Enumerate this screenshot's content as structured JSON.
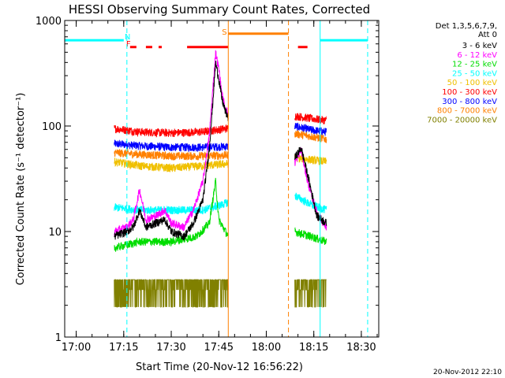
{
  "chart_data": {
    "type": "line",
    "title": "HESSI Observing Summary Count Rates, Corrected",
    "xlabel": "Start Time (20-Nov-12 16:56:22)",
    "ylabel": "Corrected Count Rate (s⁻¹ detector⁻¹)",
    "yscale": "log",
    "ylim": [
      1,
      1000
    ],
    "xlim": [
      "16:56:22",
      "18:35:30"
    ],
    "x_ticks": [
      "17:00",
      "17:15",
      "17:30",
      "17:45",
      "18:00",
      "18:15",
      "18:30"
    ],
    "y_ticks": [
      "1",
      "10",
      "100",
      "1000"
    ],
    "footer": "20-Nov-2012 22:10",
    "legend": {
      "header": [
        "Det 1,3,5,6,7,9,",
        "Att 0"
      ],
      "position": "right",
      "entries": [
        {
          "label": "3 - 6 keV",
          "color": "#000000"
        },
        {
          "label": "6 - 12 keV",
          "color": "#ff00ff"
        },
        {
          "label": "12 - 25 keV",
          "color": "#00dd00"
        },
        {
          "label": "25 - 50 keV",
          "color": "#00ffff"
        },
        {
          "label": "50 - 100 keV",
          "color": "#f0c000"
        },
        {
          "label": "100 - 300 keV",
          "color": "#ff0000"
        },
        {
          "label": "300 - 800 keV",
          "color": "#0000ff"
        },
        {
          "label": "800 - 7000 keV",
          "color": "#ff8000"
        },
        {
          "label": "7000 - 20000 keV",
          "color": "#808000"
        }
      ]
    },
    "flags": [
      {
        "letter": "N",
        "color": "#00ffff",
        "time": "17:16"
      },
      {
        "letter": "F",
        "color": "#ff0000",
        "time": "17:16"
      },
      {
        "letter": "S",
        "color": "#ff8000",
        "time": "17:46"
      }
    ],
    "flag_bars": [
      {
        "name": "night",
        "color": "#00ffff",
        "segments": [
          [
            "16:56:22",
            "17:15"
          ],
          [
            "18:17",
            "18:32"
          ]
        ],
        "level": 650
      },
      {
        "name": "saa",
        "color": "#ff8000",
        "segments": [
          [
            "17:48",
            "18:07"
          ]
        ],
        "level": 750
      },
      {
        "name": "flare",
        "color": "#ff0000",
        "segments": [
          [
            "17:17",
            "17:19"
          ],
          [
            "17:22",
            "17:24"
          ],
          [
            "17:26",
            "17:27"
          ],
          [
            "17:35",
            "17:48"
          ],
          [
            "18:10",
            "18:13"
          ]
        ],
        "level": 560,
        "style": "dashed"
      }
    ],
    "markers": [
      {
        "time": "17:16",
        "color": "#00ffff",
        "style": "dashed"
      },
      {
        "time": "18:17",
        "color": "#00ffff",
        "style": "solid"
      },
      {
        "time": "18:32",
        "color": "#00ffff",
        "style": "dashed"
      },
      {
        "time": "17:48",
        "color": "#ff8000",
        "style": "solid"
      },
      {
        "time": "18:07",
        "color": "#ff8000",
        "style": "dashed"
      }
    ],
    "data_segments": [
      [
        "17:12",
        "17:48"
      ],
      [
        "18:09",
        "18:19"
      ]
    ],
    "series": [
      {
        "name": "300 - 800 keV",
        "color": "#0000ff",
        "points": [
          [
            "17:12",
            68
          ],
          [
            "17:20",
            65
          ],
          [
            "17:30",
            63
          ],
          [
            "17:40",
            63
          ],
          [
            "17:48",
            64
          ],
          [
            "18:09",
            100
          ],
          [
            "18:14",
            92
          ],
          [
            "18:19",
            88
          ]
        ]
      },
      {
        "name": "100 - 300 keV",
        "color": "#ff0000",
        "points": [
          [
            "17:12",
            95
          ],
          [
            "17:20",
            88
          ],
          [
            "17:30",
            86
          ],
          [
            "17:40",
            88
          ],
          [
            "17:44",
            92
          ],
          [
            "17:48",
            95
          ],
          [
            "18:09",
            125
          ],
          [
            "18:14",
            118
          ],
          [
            "18:19",
            113
          ]
        ]
      },
      {
        "name": "800 - 7000 keV",
        "color": "#ff8000",
        "points": [
          [
            "17:12",
            56
          ],
          [
            "17:20",
            54
          ],
          [
            "17:30",
            52
          ],
          [
            "17:40",
            52
          ],
          [
            "17:48",
            53
          ],
          [
            "18:09",
            85
          ],
          [
            "18:14",
            80
          ],
          [
            "18:19",
            75
          ]
        ]
      },
      {
        "name": "50 - 100 keV",
        "color": "#f0c000",
        "points": [
          [
            "17:12",
            46
          ],
          [
            "17:20",
            42
          ],
          [
            "17:30",
            40
          ],
          [
            "17:40",
            42
          ],
          [
            "17:48",
            44
          ],
          [
            "18:09",
            50
          ],
          [
            "18:14",
            48
          ],
          [
            "18:19",
            46
          ]
        ]
      },
      {
        "name": "25 - 50 keV",
        "color": "#00ffff",
        "points": [
          [
            "17:12",
            17
          ],
          [
            "17:20",
            16
          ],
          [
            "17:30",
            16
          ],
          [
            "17:40",
            16
          ],
          [
            "17:46",
            18
          ],
          [
            "17:48",
            19
          ],
          [
            "18:09",
            22
          ],
          [
            "18:14",
            18
          ],
          [
            "18:19",
            16
          ]
        ]
      },
      {
        "name": "12 - 25 keV",
        "color": "#00dd00",
        "points": [
          [
            "17:12",
            7
          ],
          [
            "17:20",
            8
          ],
          [
            "17:30",
            8
          ],
          [
            "17:38",
            9
          ],
          [
            "17:42",
            12
          ],
          [
            "17:44",
            30
          ],
          [
            "17:45",
            13
          ],
          [
            "17:48",
            9
          ],
          [
            "18:09",
            10
          ],
          [
            "18:14",
            9
          ],
          [
            "18:19",
            8
          ]
        ]
      },
      {
        "name": "6 - 12 keV",
        "color": "#ff00ff",
        "points": [
          [
            "17:12",
            10
          ],
          [
            "17:16",
            11
          ],
          [
            "17:18",
            13
          ],
          [
            "17:20",
            25
          ],
          [
            "17:22",
            13
          ],
          [
            "17:25",
            14
          ],
          [
            "17:28",
            16
          ],
          [
            "17:30",
            12
          ],
          [
            "17:34",
            11
          ],
          [
            "17:37",
            16
          ],
          [
            "17:40",
            30
          ],
          [
            "17:42",
            80
          ],
          [
            "17:43",
            200
          ],
          [
            "17:44",
            500
          ],
          [
            "17:45",
            350
          ],
          [
            "17:46",
            200
          ],
          [
            "17:47",
            150
          ],
          [
            "17:48",
            130
          ],
          [
            "18:09",
            45
          ],
          [
            "18:11",
            60
          ],
          [
            "18:13",
            30
          ],
          [
            "18:16",
            15
          ],
          [
            "18:19",
            11
          ]
        ]
      },
      {
        "name": "3 - 6 keV",
        "color": "#000000",
        "points": [
          [
            "17:12",
            9
          ],
          [
            "17:16",
            10
          ],
          [
            "17:18",
            11
          ],
          [
            "17:20",
            16
          ],
          [
            "17:22",
            11
          ],
          [
            "17:25",
            12
          ],
          [
            "17:28",
            13
          ],
          [
            "17:30",
            10
          ],
          [
            "17:34",
            9
          ],
          [
            "17:37",
            12
          ],
          [
            "17:40",
            20
          ],
          [
            "17:42",
            60
          ],
          [
            "17:43",
            150
          ],
          [
            "17:44",
            400
          ],
          [
            "17:45",
            280
          ],
          [
            "17:46",
            180
          ],
          [
            "17:47",
            140
          ],
          [
            "17:48",
            120
          ],
          [
            "18:09",
            50
          ],
          [
            "18:11",
            62
          ],
          [
            "18:13",
            35
          ],
          [
            "18:16",
            14
          ],
          [
            "18:19",
            12
          ]
        ]
      },
      {
        "name": "7000 - 20000 keV",
        "color": "#808000",
        "points": [
          [
            "17:12",
            3.5
          ],
          [
            "17:20",
            3.5
          ],
          [
            "17:30",
            3.5
          ],
          [
            "17:40",
            3.5
          ],
          [
            "17:48",
            3.5
          ],
          [
            "18:09",
            3.5
          ],
          [
            "18:14",
            3.5
          ],
          [
            "18:19",
            3.5
          ]
        ]
      }
    ]
  }
}
